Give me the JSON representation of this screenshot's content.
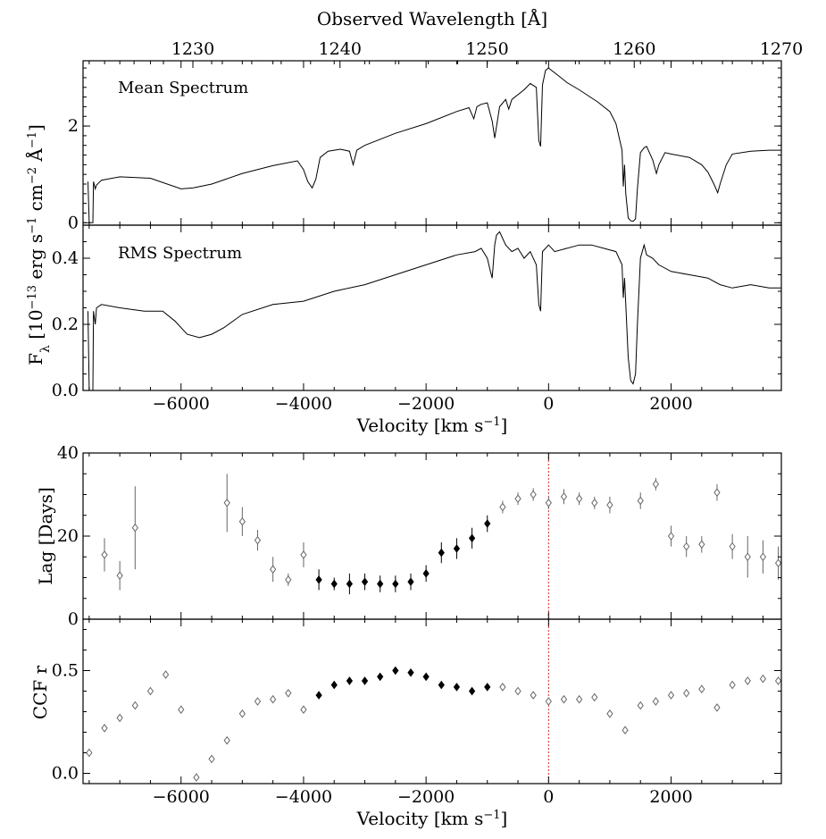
{
  "chart_data": [
    {
      "type": "line",
      "label": "Mean Spectrum",
      "top_axis": {
        "label": "Observed Wavelength [Å]",
        "ticks": [
          1230,
          1240,
          1250,
          1260,
          1270
        ],
        "tick_labels": [
          "1230",
          "1240",
          "1250",
          "1260",
          "1270"
        ]
      },
      "xlim": [
        -7600,
        3800
      ],
      "ylim": [
        -0.05,
        3.35
      ],
      "yticks": [
        0,
        2
      ],
      "ytick_labels": [
        "0",
        "2"
      ],
      "ylabel": "F_λ [10^−13 erg s^−1 cm^−2 Å^−1]",
      "series": [
        {
          "x": [
            -7520,
            -7500,
            -7470,
            -7440,
            -7430,
            -7400,
            -7380,
            -7300,
            -7000,
            -6500,
            -6000,
            -5800,
            -5500,
            -5000,
            -4500,
            -4100,
            -4000,
            -3930,
            -3860,
            -3800,
            -3730,
            -3600,
            -3400,
            -3250,
            -3190,
            -3130,
            -3000,
            -2500,
            -2000,
            -1500,
            -1300,
            -1220,
            -1170,
            -1100,
            -1000,
            -920,
            -880,
            -800,
            -700,
            -650,
            -600,
            -400,
            -300,
            -200,
            -160,
            -130,
            -100,
            -50,
            0,
            100,
            200,
            300,
            500,
            800,
            1000,
            1100,
            1200,
            1220,
            1240,
            1260,
            1300,
            1340,
            1380,
            1420,
            1450,
            1500,
            1560,
            1600,
            1700,
            1760,
            1800,
            1900,
            2000,
            2300,
            2500,
            2600,
            2700,
            2760,
            2800,
            2900,
            3000,
            3300,
            3600,
            3800
          ],
          "y": [
            0.85,
            0.0,
            0.0,
            0.0,
            0.85,
            0.7,
            0.78,
            0.88,
            0.95,
            0.92,
            0.7,
            0.72,
            0.8,
            1.02,
            1.18,
            1.28,
            1.1,
            0.85,
            0.72,
            0.9,
            1.35,
            1.48,
            1.52,
            1.48,
            1.2,
            1.5,
            1.6,
            1.85,
            2.05,
            2.3,
            2.38,
            2.15,
            2.4,
            2.45,
            2.48,
            2.1,
            1.75,
            2.4,
            2.55,
            2.35,
            2.55,
            2.75,
            2.88,
            2.8,
            1.7,
            1.58,
            2.85,
            3.15,
            3.2,
            3.1,
            3.0,
            2.9,
            2.75,
            2.5,
            2.3,
            2.05,
            1.5,
            0.75,
            1.2,
            0.6,
            0.1,
            0.04,
            0.03,
            0.08,
            0.7,
            1.45,
            1.55,
            1.58,
            1.3,
            1.02,
            1.2,
            1.45,
            1.42,
            1.35,
            1.2,
            1.05,
            0.8,
            0.62,
            0.8,
            1.2,
            1.42,
            1.48,
            1.5,
            1.5
          ]
        }
      ]
    },
    {
      "type": "line",
      "label": "RMS Spectrum",
      "xlim": [
        -7600,
        3800
      ],
      "ylim": [
        0.0,
        0.5
      ],
      "yticks": [
        0.0,
        0.2,
        0.4
      ],
      "ytick_labels": [
        "0.0",
        "0.2",
        "0.4"
      ],
      "xticks": [
        -6000,
        -4000,
        -2000,
        0,
        2000
      ],
      "xtick_labels": [
        "−6000",
        "−4000",
        "−2000",
        "0",
        "2000"
      ],
      "xlabel": "Velocity [km s^−1]",
      "series": [
        {
          "x": [
            -7520,
            -7500,
            -7470,
            -7440,
            -7430,
            -7400,
            -7380,
            -7300,
            -7000,
            -6600,
            -6300,
            -6100,
            -5900,
            -5700,
            -5500,
            -5300,
            -5000,
            -4500,
            -4000,
            -3500,
            -3000,
            -2500,
            -2000,
            -1500,
            -1200,
            -1100,
            -1000,
            -950,
            -920,
            -880,
            -850,
            -800,
            -700,
            -600,
            -500,
            -400,
            -300,
            -200,
            -160,
            -130,
            -100,
            0,
            100,
            300,
            500,
            700,
            900,
            1100,
            1200,
            1220,
            1240,
            1260,
            1300,
            1340,
            1380,
            1420,
            1450,
            1500,
            1560,
            1600,
            1700,
            1800,
            2000,
            2300,
            2600,
            2800,
            3000,
            3300,
            3600,
            3800
          ],
          "y": [
            0.24,
            0.0,
            0.0,
            0.0,
            0.24,
            0.2,
            0.25,
            0.26,
            0.25,
            0.24,
            0.24,
            0.21,
            0.17,
            0.16,
            0.17,
            0.19,
            0.23,
            0.26,
            0.27,
            0.3,
            0.32,
            0.35,
            0.38,
            0.41,
            0.42,
            0.43,
            0.4,
            0.36,
            0.34,
            0.44,
            0.47,
            0.48,
            0.44,
            0.42,
            0.43,
            0.4,
            0.42,
            0.38,
            0.26,
            0.24,
            0.42,
            0.44,
            0.42,
            0.43,
            0.44,
            0.44,
            0.43,
            0.42,
            0.38,
            0.28,
            0.34,
            0.26,
            0.1,
            0.03,
            0.02,
            0.05,
            0.2,
            0.4,
            0.44,
            0.41,
            0.4,
            0.38,
            0.36,
            0.35,
            0.34,
            0.32,
            0.31,
            0.32,
            0.31,
            0.31
          ]
        }
      ]
    },
    {
      "type": "scatter",
      "xlim": [
        -7600,
        3800
      ],
      "ylim": [
        0,
        40
      ],
      "yticks": [
        0,
        20,
        40
      ],
      "ytick_labels": [
        "0",
        "20",
        "40"
      ],
      "ylabel": "Lag [Days]",
      "reference_line": {
        "x": 0,
        "color": "#d62728",
        "style": "dotted"
      },
      "series": [
        {
          "marker": "open-diamond",
          "points": [
            {
              "x": -7250,
              "y": 15.5,
              "err": 4
            },
            {
              "x": -7000,
              "y": 10.5,
              "err": 3.5
            },
            {
              "x": -6750,
              "y": 22.0,
              "err": 10
            },
            {
              "x": -5250,
              "y": 28.0,
              "err": 7
            },
            {
              "x": -5000,
              "y": 23.5,
              "err": 3.5
            },
            {
              "x": -4750,
              "y": 19.0,
              "err": 2.5
            },
            {
              "x": -4500,
              "y": 12.0,
              "err": 3
            },
            {
              "x": -4250,
              "y": 9.5,
              "err": 1.5
            },
            {
              "x": -4000,
              "y": 15.5,
              "err": 3
            },
            {
              "x": -750,
              "y": 27.0,
              "err": 1.5
            },
            {
              "x": -500,
              "y": 29.0,
              "err": 1.5
            },
            {
              "x": -250,
              "y": 30.0,
              "err": 1.5
            },
            {
              "x": 0,
              "y": 28.0,
              "err": 1.5
            },
            {
              "x": 250,
              "y": 29.5,
              "err": 1.8
            },
            {
              "x": 500,
              "y": 29.0,
              "err": 1.5
            },
            {
              "x": 750,
              "y": 28.0,
              "err": 1.5
            },
            {
              "x": 1000,
              "y": 27.5,
              "err": 2
            },
            {
              "x": 1500,
              "y": 28.5,
              "err": 2
            },
            {
              "x": 1750,
              "y": 32.5,
              "err": 1.5
            },
            {
              "x": 2000,
              "y": 20.0,
              "err": 2.5
            },
            {
              "x": 2250,
              "y": 17.5,
              "err": 2.5
            },
            {
              "x": 2500,
              "y": 18.0,
              "err": 2
            },
            {
              "x": 2750,
              "y": 30.5,
              "err": 2
            },
            {
              "x": 3000,
              "y": 17.5,
              "err": 3
            },
            {
              "x": 3250,
              "y": 15.0,
              "err": 5
            },
            {
              "x": 3500,
              "y": 15.0,
              "err": 4
            },
            {
              "x": 3750,
              "y": 13.5,
              "err": 4
            }
          ]
        },
        {
          "marker": "filled-diamond",
          "points": [
            {
              "x": -3750,
              "y": 9.5,
              "err": 2.5
            },
            {
              "x": -3500,
              "y": 8.5,
              "err": 1.5
            },
            {
              "x": -3250,
              "y": 8.5,
              "err": 2.5
            },
            {
              "x": -3000,
              "y": 9.0,
              "err": 2
            },
            {
              "x": -2750,
              "y": 8.5,
              "err": 2
            },
            {
              "x": -2500,
              "y": 8.5,
              "err": 2
            },
            {
              "x": -2250,
              "y": 9.0,
              "err": 2
            },
            {
              "x": -2000,
              "y": 11.0,
              "err": 2
            },
            {
              "x": -1750,
              "y": 16.0,
              "err": 2.5
            },
            {
              "x": -1500,
              "y": 17.0,
              "err": 2.5
            },
            {
              "x": -1250,
              "y": 19.5,
              "err": 2.5
            },
            {
              "x": -1000,
              "y": 23.0,
              "err": 2
            }
          ]
        }
      ]
    },
    {
      "type": "scatter",
      "xlim": [
        -7600,
        3800
      ],
      "ylim": [
        -0.05,
        0.75
      ],
      "yticks": [
        0.0,
        0.5
      ],
      "ytick_labels": [
        "0.0",
        "0.5"
      ],
      "ylabel": "CCF r",
      "xticks": [
        -6000,
        -4000,
        -2000,
        0,
        2000
      ],
      "xtick_labels": [
        "−6000",
        "−4000",
        "−2000",
        "0",
        "2000"
      ],
      "xlabel": "Velocity [km s^−1]",
      "reference_line": {
        "x": 0,
        "color": "#d62728",
        "style": "dotted"
      },
      "series": [
        {
          "marker": "open-diamond",
          "points": [
            {
              "x": -7500,
              "y": 0.1
            },
            {
              "x": -7250,
              "y": 0.22
            },
            {
              "x": -7000,
              "y": 0.27
            },
            {
              "x": -6750,
              "y": 0.33
            },
            {
              "x": -6500,
              "y": 0.4
            },
            {
              "x": -6250,
              "y": 0.48
            },
            {
              "x": -6000,
              "y": 0.31
            },
            {
              "x": -5750,
              "y": -0.02
            },
            {
              "x": -5500,
              "y": 0.07
            },
            {
              "x": -5250,
              "y": 0.16
            },
            {
              "x": -5000,
              "y": 0.29
            },
            {
              "x": -4750,
              "y": 0.35
            },
            {
              "x": -4500,
              "y": 0.36
            },
            {
              "x": -4250,
              "y": 0.39
            },
            {
              "x": -4000,
              "y": 0.31
            },
            {
              "x": -750,
              "y": 0.42
            },
            {
              "x": -500,
              "y": 0.4
            },
            {
              "x": -250,
              "y": 0.38
            },
            {
              "x": 0,
              "y": 0.35
            },
            {
              "x": 250,
              "y": 0.36
            },
            {
              "x": 500,
              "y": 0.36
            },
            {
              "x": 750,
              "y": 0.37
            },
            {
              "x": 1000,
              "y": 0.29
            },
            {
              "x": 1250,
              "y": 0.21
            },
            {
              "x": 1500,
              "y": 0.33
            },
            {
              "x": 1750,
              "y": 0.35
            },
            {
              "x": 2000,
              "y": 0.38
            },
            {
              "x": 2250,
              "y": 0.39
            },
            {
              "x": 2500,
              "y": 0.41
            },
            {
              "x": 2750,
              "y": 0.32
            },
            {
              "x": 3000,
              "y": 0.43
            },
            {
              "x": 3250,
              "y": 0.45
            },
            {
              "x": 3500,
              "y": 0.46
            },
            {
              "x": 3750,
              "y": 0.45
            }
          ]
        },
        {
          "marker": "filled-diamond",
          "points": [
            {
              "x": -3750,
              "y": 0.38
            },
            {
              "x": -3500,
              "y": 0.43
            },
            {
              "x": -3250,
              "y": 0.45
            },
            {
              "x": -3000,
              "y": 0.45
            },
            {
              "x": -2750,
              "y": 0.47
            },
            {
              "x": -2500,
              "y": 0.5
            },
            {
              "x": -2250,
              "y": 0.49
            },
            {
              "x": -2000,
              "y": 0.47
            },
            {
              "x": -1750,
              "y": 0.43
            },
            {
              "x": -1500,
              "y": 0.42
            },
            {
              "x": -1250,
              "y": 0.4
            },
            {
              "x": -1000,
              "y": 0.42
            }
          ]
        }
      ]
    }
  ]
}
